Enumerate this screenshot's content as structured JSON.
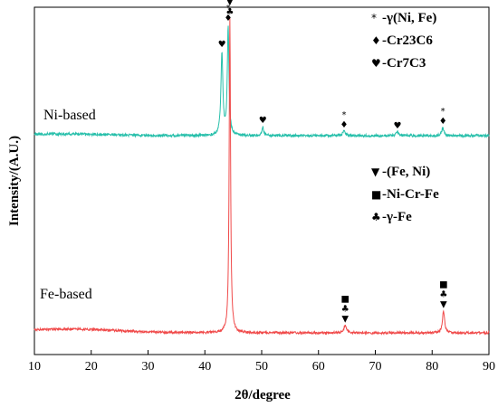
{
  "chart_data": {
    "type": "line",
    "xlabel": "2θ/degree",
    "ylabel": "Intensity/(A.U.)",
    "xlim": [
      10,
      90
    ],
    "xticks": [
      "10",
      "20",
      "30",
      "40",
      "50",
      "60",
      "70",
      "80",
      "90"
    ],
    "colors": {
      "Ni-based": "#26bfaa",
      "Fe-based": "#f04a4a"
    },
    "series": [
      {
        "name": "Ni-based",
        "baseline": 0.0,
        "hump": {
          "center": 15,
          "height": 0.012,
          "width": 11
        },
        "peaks": [
          {
            "x": 43.0,
            "height": 0.57,
            "width": 0.35
          },
          {
            "x": 44.1,
            "height": 0.75,
            "width": 0.3
          },
          {
            "x": 50.2,
            "height": 0.06,
            "width": 0.35
          },
          {
            "x": 64.5,
            "height": 0.03,
            "width": 0.45
          },
          {
            "x": 73.9,
            "height": 0.025,
            "width": 0.45
          },
          {
            "x": 81.9,
            "height": 0.055,
            "width": 0.4
          }
        ],
        "markers": [
          {
            "x": 43.0,
            "symbols": [
              "♥"
            ]
          },
          {
            "x": 44.1,
            "symbols": [
              "*",
              "♦"
            ]
          },
          {
            "x": 50.2,
            "symbols": [
              "♥"
            ]
          },
          {
            "x": 64.5,
            "symbols": [
              "*",
              "♦"
            ]
          },
          {
            "x": 73.9,
            "symbols": [
              "♥"
            ]
          },
          {
            "x": 81.9,
            "symbols": [
              "*",
              "♦"
            ]
          }
        ]
      },
      {
        "name": "Fe-based",
        "baseline": 0.0,
        "hump": {
          "center": 16,
          "height": 0.012,
          "width": 12
        },
        "peaks": [
          {
            "x": 44.4,
            "height": 1.0,
            "width": 0.25
          },
          {
            "x": 64.7,
            "height": 0.025,
            "width": 0.45
          },
          {
            "x": 82.0,
            "height": 0.07,
            "width": 0.4
          }
        ],
        "markers": [
          {
            "x": 44.4,
            "symbols": [
              "■",
              "▼",
              "♣"
            ]
          },
          {
            "x": 64.7,
            "symbols": [
              "■",
              "♣",
              "▼"
            ]
          },
          {
            "x": 82.0,
            "symbols": [
              "■",
              "♣",
              "▼"
            ]
          }
        ]
      }
    ],
    "legends": [
      {
        "entries": [
          {
            "symbol": "*",
            "text": "-γ(Ni, Fe)"
          },
          {
            "symbol": "♦",
            "text": "-Cr23C6"
          },
          {
            "symbol": "♥",
            "text": "-Cr7C3"
          }
        ]
      },
      {
        "entries": [
          {
            "symbol": "▼",
            "text": "-(Fe, Ni)"
          },
          {
            "symbol": "■",
            "text": "-Ni-Cr-Fe"
          },
          {
            "symbol": "♣",
            "text": "-γ-Fe"
          }
        ]
      }
    ]
  }
}
